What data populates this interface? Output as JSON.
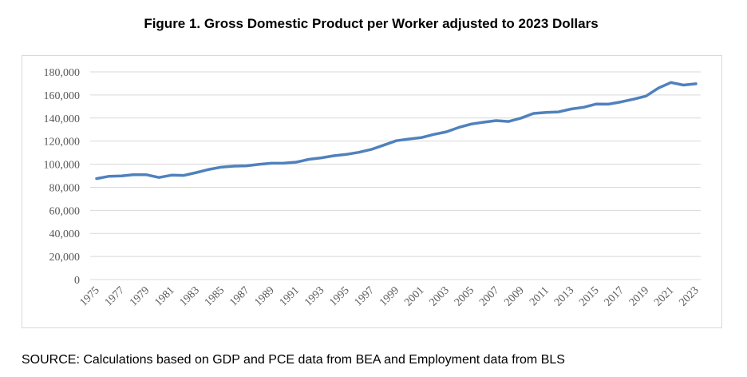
{
  "chart_data": {
    "type": "line",
    "title": "Figure 1. Gross Domestic Product per Worker adjusted to 2023 Dollars",
    "xlabel": "",
    "ylabel": "",
    "ylim": [
      0,
      180000
    ],
    "yticks": [
      "0",
      "20,000",
      "40,000",
      "60,000",
      "80,000",
      "100,000",
      "120,000",
      "140,000",
      "160,000",
      "180,000"
    ],
    "xtick_labels": [
      "1975",
      "1977",
      "1979",
      "1981",
      "1983",
      "1985",
      "1987",
      "1989",
      "1991",
      "1993",
      "1995",
      "1997",
      "1999",
      "2001",
      "2003",
      "2005",
      "2007",
      "2009",
      "2011",
      "2013",
      "2015",
      "2017",
      "2019",
      "2021",
      "2023"
    ],
    "grid": true,
    "legend": "none",
    "line_color": "#4f81bd",
    "x": [
      1975,
      1976,
      1977,
      1978,
      1979,
      1980,
      1981,
      1982,
      1983,
      1984,
      1985,
      1986,
      1987,
      1988,
      1989,
      1990,
      1991,
      1992,
      1993,
      1994,
      1995,
      1996,
      1997,
      1998,
      1999,
      2000,
      2001,
      2002,
      2003,
      2004,
      2005,
      2006,
      2007,
      2008,
      2009,
      2010,
      2011,
      2012,
      2013,
      2014,
      2015,
      2016,
      2017,
      2018,
      2019,
      2020,
      2021,
      2022,
      2023
    ],
    "series": [
      {
        "values": [
          87500,
          89500,
          89800,
          91000,
          90800,
          88500,
          90500,
          90300,
          92800,
          95500,
          97500,
          98300,
          98600,
          99800,
          100800,
          100900,
          101800,
          104200,
          105500,
          107300,
          108500,
          110300,
          112800,
          116500,
          120300,
          121800,
          123000,
          125800,
          128000,
          131800,
          134800,
          136400,
          137800,
          137000,
          140000,
          144000,
          144800,
          145300,
          147800,
          149300,
          152100,
          152000,
          154000,
          156300,
          159000,
          166000,
          170800,
          168600,
          169700
        ]
      }
    ]
  },
  "source_note": "SOURCE: Calculations based on GDP and PCE data from BEA and Employment data from BLS"
}
